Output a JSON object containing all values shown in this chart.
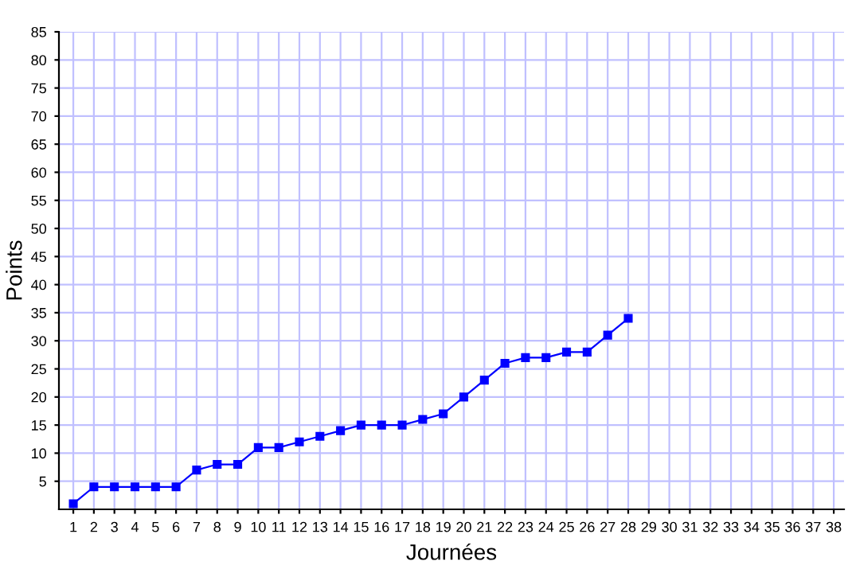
{
  "chart_data": {
    "type": "line",
    "xlabel": "Journées",
    "ylabel": "Points",
    "x": [
      1,
      2,
      3,
      4,
      5,
      6,
      7,
      8,
      9,
      10,
      11,
      12,
      13,
      14,
      15,
      16,
      17,
      18,
      19,
      20,
      21,
      22,
      23,
      24,
      25,
      26,
      27,
      28
    ],
    "series": [
      {
        "color": "#0000ff",
        "values": [
          1,
          4,
          4,
          4,
          4,
          4,
          7,
          8,
          8,
          11,
          11,
          12,
          13,
          14,
          15,
          15,
          15,
          16,
          17,
          20,
          23,
          26,
          27,
          27,
          28,
          28,
          31,
          34
        ]
      }
    ],
    "xlim": [
      0.3,
      38.5
    ],
    "xticks": [
      1,
      2,
      3,
      4,
      5,
      6,
      7,
      8,
      9,
      10,
      11,
      12,
      13,
      14,
      15,
      16,
      17,
      18,
      19,
      20,
      21,
      22,
      23,
      24,
      25,
      26,
      27,
      28,
      29,
      30,
      31,
      32,
      33,
      34,
      35,
      36,
      37,
      38
    ],
    "ylim": [
      0,
      85
    ],
    "yticks": [
      5,
      10,
      15,
      20,
      25,
      30,
      35,
      40,
      45,
      50,
      55,
      60,
      65,
      70,
      75,
      80,
      85
    ],
    "grid": true,
    "marker": "square",
    "line_style": "solid"
  }
}
